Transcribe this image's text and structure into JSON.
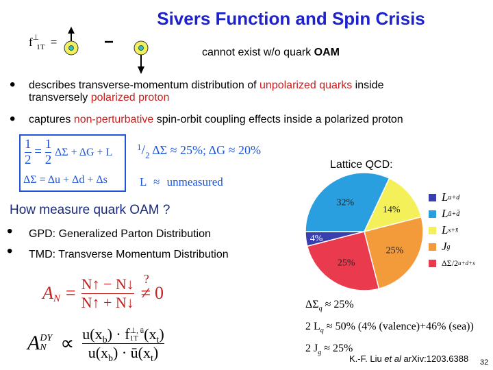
{
  "slide": {
    "title": "Sivers Function and Spin Crisis",
    "sivers_diagram": {
      "f_main": "f",
      "f_sup": "⊥",
      "f_sub": "1T",
      "equals": "=",
      "minus": "−"
    },
    "cannot_exist": "cannot exist w/o quark ",
    "cannot_exist_bold": "OAM",
    "bullets": [
      {
        "parts": [
          "describes transverse-momentum distribution of ",
          "unpolarized quarks",
          " inside"
        ],
        "line2_parts": [
          "transversely ",
          "polarized proton"
        ]
      },
      {
        "parts": [
          "captures ",
          "non-perturbative",
          " spin-orbit  coupling effects inside a polarized proton"
        ]
      }
    ],
    "spin_sum": {
      "line1_left": "1",
      "line1_den": "2",
      "line1_eq": "=",
      "line1_right_num": "1",
      "line1_right_den": "2",
      "line1_rest": "ΔΣ + ΔG + L",
      "line2": "ΔΣ = Δu + Δd + Δs",
      "frac_half_num": "1",
      "frac_half_den": "2",
      "approx1": "ΔΣ ≈ 25%;   ΔG ≈ 20%",
      "L_unmeasured_L": "L",
      "L_unmeasured_approx": "≈",
      "L_unmeasured_text": "unmeasured"
    },
    "lattice_label": "Lattice QCD:",
    "how_measure": "How  measure quark OAM ?",
    "measure_bullets": [
      "GPD: Generalized Parton Distribution",
      "TMD: Transverse Momentum Distribution"
    ],
    "an_formula": {
      "A": "A",
      "N": "N",
      "up": "N↑ − N↓",
      "down": "N↑ + N↓",
      "neq": "?",
      "zero": "0"
    },
    "dy_formula": {
      "A": "A",
      "sup": "DY",
      "sub": "N",
      "prop": "∝",
      "num_left": "u(x",
      "num_b": "b",
      "num_mid": ") · f",
      "num_sup": "⊥, ū",
      "num_sub": "1T",
      "num_end": "(x",
      "num_t": "t",
      "num_close": ")",
      "den": "u(x",
      "den_b": "b",
      "den_mid": ") · ū(x",
      "den_t": "t",
      "den_close": ")"
    },
    "pie_legend": [
      {
        "label": "L",
        "sup": "u+d",
        "color": "#3a3fb0"
      },
      {
        "label": "L",
        "sup": "ū+d̄",
        "color": "#2a9fe0"
      },
      {
        "label": "L",
        "sup": "s+s̄",
        "color": "#f4f05a"
      },
      {
        "label": "J",
        "sup": "g",
        "color": "#f39a3a"
      },
      {
        "label": "ΔΣ/2",
        "sup": "u+d+s",
        "color": "#ea3a4e"
      }
    ],
    "pie_slice_labels": {
      "red": "25%",
      "orange": "25%",
      "yellow": "14%",
      "cyan": "32%",
      "blue": "4%"
    },
    "lattice_results": [
      "ΔΣ",
      "≈ 25%",
      "2 L",
      "≈ 50% (4% (valence)+46% (sea))",
      "2 J",
      "≈ 25%"
    ],
    "lattice_results_sub": [
      "q",
      "q",
      "g"
    ],
    "citation": {
      "prefix": "K.-F. Liu ",
      "etal": "et al",
      "suffix": " arXiv:1203.6388"
    },
    "page_number": "32"
  },
  "chart_data": {
    "type": "pie",
    "title": "",
    "slices": [
      {
        "label": "L^{u+d}",
        "value": 4
      },
      {
        "label": "L^{ū+d̄}",
        "value": 32
      },
      {
        "label": "L^{s+s̄}",
        "value": 14
      },
      {
        "label": "J^g",
        "value": 25
      },
      {
        "label": "ΔΣ/2^{u+d+s}",
        "value": 25
      }
    ],
    "legend_position": "right"
  }
}
